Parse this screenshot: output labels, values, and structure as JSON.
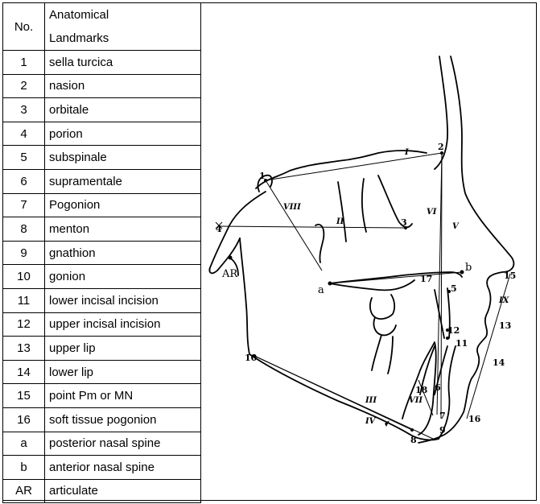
{
  "table": {
    "header_no": "No.",
    "header_name_line1": "Anatomical",
    "header_name_line2": "Landmarks",
    "rows": [
      {
        "no": "1",
        "name": "sella turcica"
      },
      {
        "no": "2",
        "name": "nasion"
      },
      {
        "no": "3",
        "name": "orbitale"
      },
      {
        "no": "4",
        "name": "porion"
      },
      {
        "no": "5",
        "name": "subspinale"
      },
      {
        "no": "6",
        "name": "supramentale"
      },
      {
        "no": "7",
        "name": "Pogonion"
      },
      {
        "no": "8",
        "name": "menton"
      },
      {
        "no": "9",
        "name": "gnathion"
      },
      {
        "no": "10",
        "name": "gonion"
      },
      {
        "no": "11",
        "name": "lower incisal incision"
      },
      {
        "no": "12",
        "name": "upper incisal incision"
      },
      {
        "no": "13",
        "name": "upper lip"
      },
      {
        "no": "14",
        "name": "lower lip"
      },
      {
        "no": "15",
        "name": "point Pm or MN"
      },
      {
        "no": "16",
        "name": "soft tissue pogonion"
      },
      {
        "no": "a",
        "name": "posterior nasal spine"
      },
      {
        "no": "b",
        "name": "anterior nasal spine"
      },
      {
        "no": "AR",
        "name": "articulate"
      }
    ]
  },
  "diagram": {
    "point_labels": {
      "p1": "1",
      "p2": "2",
      "p3": "3",
      "p4": "4",
      "p5": "5",
      "p6": "6",
      "p7": "7",
      "p8": "8",
      "p9": "9",
      "p10": "10",
      "p11": "11",
      "p12": "12",
      "p13": "13",
      "p14": "14",
      "p15": "15",
      "p16": "16",
      "p17": "17",
      "p18": "18",
      "a": "a",
      "b": "b",
      "ar": "AR"
    },
    "line_labels": {
      "I": "I",
      "II": "II",
      "III": "III",
      "IV": "IV",
      "V": "V",
      "VI": "VI",
      "VII": "VII",
      "VIII": "VIII",
      "IX": "IX"
    }
  }
}
